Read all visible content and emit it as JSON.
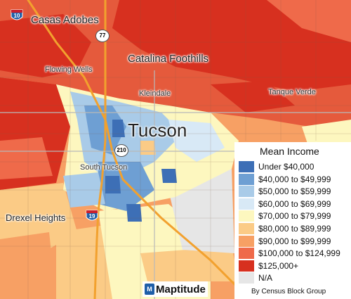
{
  "places": {
    "casas_adobes": "Casas Adobes",
    "catalina_foothills": "Catalina Foothills",
    "flowing_wells": "Flowing Wells",
    "kleindale": "Kleindale",
    "tanque_verde": "Tanque Verde",
    "tucson": "Tucson",
    "south_tucson": "South Tucson",
    "drexel_heights": "Drexel Heights"
  },
  "shields": {
    "i10": "10",
    "i19": "19",
    "r77": "77",
    "r210": "210"
  },
  "legend": {
    "title": "Mean Income",
    "items": [
      {
        "label": "Under $40,000",
        "color": "#3d6fb6"
      },
      {
        "label": "$40,000 to $49,999",
        "color": "#6e9fd3"
      },
      {
        "label": "$50,000 to $59,999",
        "color": "#a9cbe8"
      },
      {
        "label": "$60,000 to $69,999",
        "color": "#d8e9f6"
      },
      {
        "label": "$70,000 to $79,999",
        "color": "#fdf7bf"
      },
      {
        "label": "$80,000 to $89,999",
        "color": "#fbcb86"
      },
      {
        "label": "$90,000 to $99,999",
        "color": "#f7a064"
      },
      {
        "label": "$100,000 to $124,999",
        "color": "#ef6a4a"
      },
      {
        "label": "$125,000+",
        "color": "#d7301f"
      },
      {
        "label": "N/A",
        "color": "#e6e6e6"
      }
    ],
    "footnote": "By Census Block Group"
  },
  "logo": {
    "brand": "Maptitude",
    "icon": "M"
  }
}
